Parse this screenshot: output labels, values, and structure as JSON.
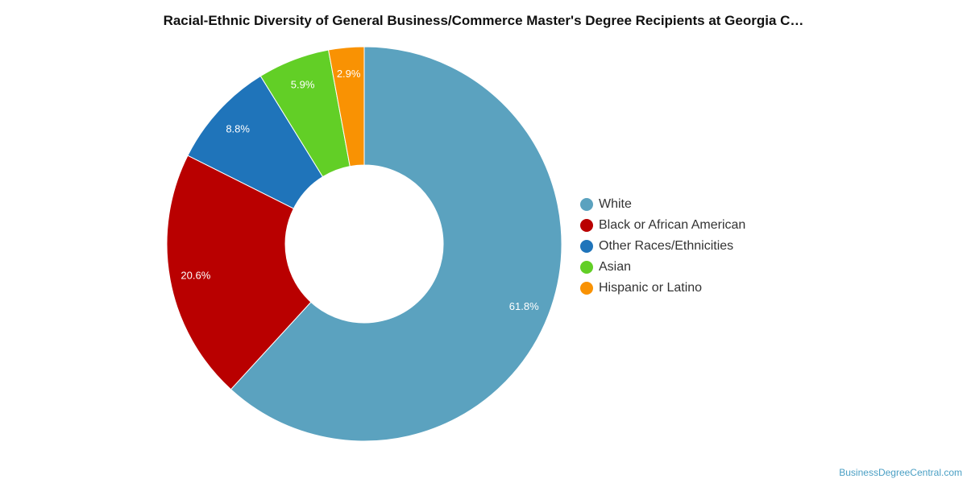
{
  "chart_data": {
    "type": "pie",
    "title": "Racial-Ethnic Diversity of General Business/Commerce Master's Degree Recipients at Georgia C…",
    "slices": [
      {
        "label": "White",
        "value": 61.8,
        "value_label": "61.8%",
        "color": "#5ba2bf"
      },
      {
        "label": "Black or African American",
        "value": 20.6,
        "value_label": "20.6%",
        "color": "#b90000"
      },
      {
        "label": "Other Races/Ethnicities",
        "value": 8.8,
        "value_label": "8.8%",
        "color": "#1f74ba"
      },
      {
        "label": "Asian",
        "value": 5.9,
        "value_label": "5.9%",
        "color": "#62cf26"
      },
      {
        "label": "Hispanic or Latino",
        "value": 2.9,
        "value_label": "2.9%",
        "color": "#f99203"
      }
    ],
    "donut": true,
    "legend_position": "right"
  },
  "footer": {
    "source": "BusinessDegreeCentral.com"
  }
}
